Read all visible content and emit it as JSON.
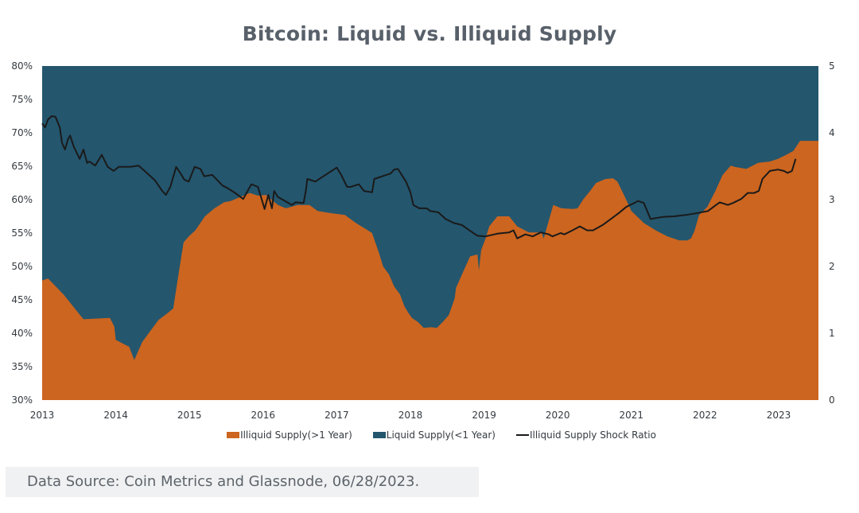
{
  "chart_data": {
    "type": "area",
    "title": "Bitcoin: Liquid vs. Illiquid Supply",
    "xlabel": "",
    "ylabel_left": "",
    "ylabel_right": "",
    "x_ticks": [
      "2013",
      "2014",
      "2015",
      "2016",
      "2017",
      "2018",
      "2019",
      "2020",
      "2021",
      "2022",
      "2023"
    ],
    "xlim": [
      2013.0,
      2023.5
    ],
    "y_left_ticks": [
      "80%",
      "75%",
      "70%",
      "65%",
      "60%",
      "55%",
      "50%",
      "45%",
      "40%",
      "35%",
      "30%"
    ],
    "y_left_lim": [
      30,
      80
    ],
    "y_right_ticks": [
      "5",
      "4",
      "3",
      "2",
      "1",
      "0"
    ],
    "y_right_lim": [
      0,
      5
    ],
    "grid": false,
    "legend_position": "bottom",
    "colors": {
      "illiquid": "#cc651f",
      "liquid": "#24566e",
      "ratio": "#1a1a1a"
    },
    "series": [
      {
        "name": "Illiquid Supply(>1 Year)",
        "axis": "left",
        "kind": "area",
        "x": [
          2013.0,
          2013.08,
          2013.29,
          2013.56,
          2013.92,
          2013.98,
          2014.0,
          2014.16,
          2014.18,
          2014.25,
          2014.36,
          2014.58,
          2014.69,
          2014.78,
          2014.86,
          2014.92,
          2014.99,
          2015.08,
          2015.21,
          2015.34,
          2015.47,
          2015.56,
          2015.82,
          2015.93,
          2016.04,
          2016.2,
          2016.31,
          2016.47,
          2016.63,
          2016.74,
          2016.9,
          2017.11,
          2017.26,
          2017.38,
          2017.48,
          2017.58,
          2017.63,
          2017.71,
          2017.78,
          2017.86,
          2017.92,
          2017.97,
          2018.02,
          2018.1,
          2018.18,
          2018.28,
          2018.36,
          2018.44,
          2018.52,
          2018.6,
          2018.62,
          2018.7,
          2018.81,
          2018.91,
          2018.93,
          2018.96,
          2019.02,
          2019.07,
          2019.18,
          2019.34,
          2019.45,
          2019.61,
          2019.78,
          2019.81,
          2019.94,
          2020.05,
          2020.21,
          2020.27,
          2020.35,
          2020.44,
          2020.52,
          2020.65,
          2020.75,
          2020.81,
          2020.9,
          2021.0,
          2021.17,
          2021.33,
          2021.49,
          2021.65,
          2021.76,
          2021.81,
          2021.86,
          2021.92,
          2022.03,
          2022.14,
          2022.24,
          2022.35,
          2022.4,
          2022.56,
          2022.72,
          2022.88,
          2022.99,
          2023.1,
          2023.2,
          2023.29
        ],
        "values": [
          47.9,
          48.2,
          45.8,
          42.1,
          42.3,
          41.0,
          39.0,
          38.1,
          38.0,
          36.0,
          38.7,
          42.0,
          42.9,
          43.7,
          49.4,
          53.6,
          54.5,
          55.4,
          57.5,
          58.7,
          59.6,
          59.8,
          61.0,
          60.6,
          60.7,
          59.2,
          58.7,
          59.2,
          59.2,
          58.3,
          58.0,
          57.7,
          56.5,
          55.7,
          55.0,
          51.8,
          50.0,
          48.8,
          47.0,
          45.8,
          44.0,
          43.1,
          42.3,
          41.7,
          40.8,
          40.9,
          40.8,
          41.7,
          42.7,
          45.2,
          46.8,
          48.8,
          51.5,
          51.8,
          49.4,
          52.4,
          54.2,
          56.0,
          57.5,
          57.5,
          56.0,
          55.1,
          55.1,
          54.2,
          59.2,
          58.7,
          58.6,
          58.7,
          60.1,
          61.3,
          62.5,
          63.1,
          63.2,
          62.7,
          60.7,
          58.3,
          56.5,
          55.4,
          54.5,
          53.9,
          53.9,
          54.2,
          55.4,
          57.7,
          58.9,
          61.3,
          63.7,
          65.1,
          64.9,
          64.6,
          65.5,
          65.7,
          66.1,
          66.7,
          67.3,
          68.8
        ]
      },
      {
        "name": "Liquid Supply(<1 Year)",
        "axis": "left",
        "kind": "area",
        "note_values": "complement of illiquid area up to 80%"
      },
      {
        "name": "Illiquid Supply Shock Ratio",
        "axis": "right",
        "kind": "line",
        "x": [
          2013.0,
          2013.04,
          2013.08,
          2013.13,
          2013.18,
          2013.24,
          2013.27,
          2013.31,
          2013.35,
          2013.38,
          2013.43,
          2013.51,
          2013.56,
          2013.61,
          2013.64,
          2013.72,
          2013.81,
          2013.89,
          2013.97,
          2014.04,
          2014.1,
          2014.2,
          2014.31,
          2014.45,
          2014.53,
          2014.63,
          2014.68,
          2014.74,
          2014.82,
          2014.88,
          2014.93,
          2014.99,
          2015.07,
          2015.15,
          2015.2,
          2015.31,
          2015.45,
          2015.52,
          2015.62,
          2015.73,
          2015.84,
          2015.93,
          2016.02,
          2016.07,
          2016.12,
          2016.15,
          2016.2,
          2016.28,
          2016.39,
          2016.44,
          2016.55,
          2016.58,
          2016.6,
          2016.71,
          2016.82,
          2016.93,
          2017.0,
          2017.06,
          2017.14,
          2017.19,
          2017.3,
          2017.37,
          2017.48,
          2017.51,
          2017.62,
          2017.73,
          2017.78,
          2017.83,
          2017.94,
          2018.0,
          2018.04,
          2018.12,
          2018.22,
          2018.27,
          2018.38,
          2018.48,
          2018.59,
          2018.7,
          2018.8,
          2018.91,
          2019.02,
          2019.18,
          2019.34,
          2019.4,
          2019.45,
          2019.56,
          2019.66,
          2019.77,
          2019.88,
          2019.93,
          2020.04,
          2020.09,
          2020.2,
          2020.3,
          2020.4,
          2020.48,
          2020.61,
          2020.72,
          2020.83,
          2020.93,
          2021.04,
          2021.09,
          2021.17,
          2021.26,
          2021.42,
          2021.58,
          2021.74,
          2021.9,
          2022.04,
          2022.15,
          2022.2,
          2022.31,
          2022.38,
          2022.49,
          2022.58,
          2022.67,
          2022.73,
          2022.78,
          2022.88,
          2022.99,
          2023.07,
          2023.12,
          2023.18,
          2023.23
        ],
        "values": [
          4.14,
          4.08,
          4.2,
          4.25,
          4.24,
          4.08,
          3.85,
          3.75,
          3.9,
          3.96,
          3.79,
          3.61,
          3.75,
          3.55,
          3.57,
          3.51,
          3.67,
          3.49,
          3.43,
          3.49,
          3.49,
          3.49,
          3.51,
          3.37,
          3.29,
          3.13,
          3.07,
          3.19,
          3.49,
          3.39,
          3.3,
          3.27,
          3.49,
          3.46,
          3.35,
          3.37,
          3.21,
          3.17,
          3.1,
          3.01,
          3.23,
          3.19,
          2.86,
          3.07,
          2.87,
          3.13,
          3.04,
          2.99,
          2.92,
          2.96,
          2.95,
          3.13,
          3.31,
          3.27,
          3.35,
          3.43,
          3.48,
          3.37,
          3.19,
          3.19,
          3.23,
          3.13,
          3.11,
          3.31,
          3.35,
          3.39,
          3.45,
          3.46,
          3.27,
          3.11,
          2.92,
          2.87,
          2.87,
          2.83,
          2.81,
          2.71,
          2.65,
          2.62,
          2.54,
          2.46,
          2.45,
          2.49,
          2.51,
          2.54,
          2.42,
          2.48,
          2.45,
          2.51,
          2.48,
          2.45,
          2.5,
          2.48,
          2.54,
          2.6,
          2.54,
          2.54,
          2.62,
          2.71,
          2.8,
          2.89,
          2.95,
          2.98,
          2.95,
          2.71,
          2.74,
          2.75,
          2.77,
          2.8,
          2.83,
          2.92,
          2.96,
          2.92,
          2.95,
          3.01,
          3.1,
          3.1,
          3.13,
          3.31,
          3.43,
          3.45,
          3.43,
          3.4,
          3.43,
          3.61
        ]
      }
    ]
  },
  "legend": {
    "illiquid_label": "Illiquid Supply(>1 Year)",
    "liquid_label": "Liquid Supply(<1 Year)",
    "ratio_label": "Illiquid Supply Shock Ratio"
  },
  "footer": {
    "source": "Data Source: Coin Metrics and Glassnode, 06/28/2023."
  }
}
